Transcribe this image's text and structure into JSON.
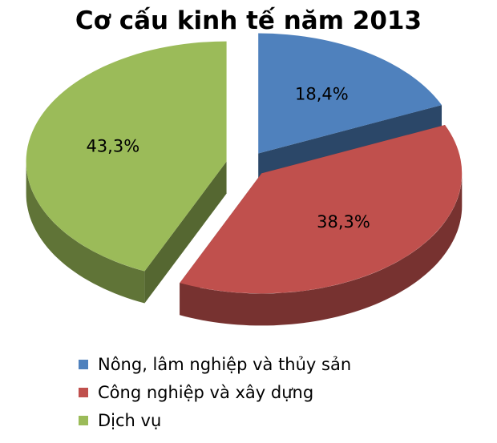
{
  "chart_data": {
    "type": "pie",
    "title": "Cơ cấu kinh tế năm 2013",
    "slices": [
      {
        "name": "Nông, lâm nghiệp và thủy sản",
        "value": 18.4,
        "label": "18,4%",
        "color": "#4F81BD"
      },
      {
        "name": "Công nghiệp và xây dựng",
        "value": 38.3,
        "label": "38,3%",
        "color": "#C0504D"
      },
      {
        "name": "Dịch vụ",
        "value": 43.3,
        "label": "43,3%",
        "color": "#9BBB59"
      }
    ],
    "unit": "%",
    "style": "3d-exploded",
    "legend_position": "bottom"
  }
}
